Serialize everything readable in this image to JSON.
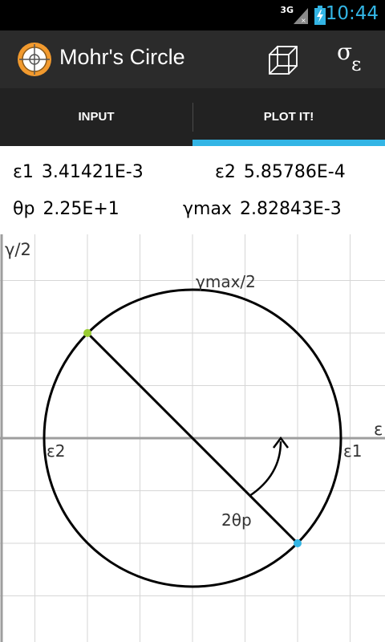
{
  "status_bar": {
    "network": "3G",
    "time": "10:44",
    "icons": [
      "signal-icon",
      "battery-charging-icon"
    ]
  },
  "action_bar": {
    "title": "Mohr's Circle",
    "app_icon": "mohrs-circle-app-icon",
    "actions": [
      {
        "name": "3d-cube-view",
        "icon": "cube-icon"
      },
      {
        "name": "stress-strain-toggle",
        "label_main": "σ",
        "label_sub": "ε"
      }
    ]
  },
  "tabs": [
    {
      "label": "INPUT",
      "selected": false
    },
    {
      "label": "PLOT IT!",
      "selected": true
    }
  ],
  "results": {
    "e1_label": "ε1",
    "e1_value": "3.41421E-3",
    "e2_label": "ε2",
    "e2_value": "5.85786E-4",
    "tp_label": "θp",
    "tp_value": "2.25E+1",
    "gmax_label": "γmax",
    "gmax_value": "2.82843E-3"
  },
  "plot": {
    "y_axis_label": "γ/2",
    "x_axis_label": "ε",
    "top_label": "γmax/2",
    "left_intercept_label": "ε2",
    "right_intercept_label": "ε1",
    "angle_label": "2θp",
    "colors": {
      "grid": "#d6d6d6",
      "axis": "#9e9e9e",
      "circle": "#000000",
      "point_a": "#9acd32",
      "point_b": "#33b5e5"
    }
  }
}
